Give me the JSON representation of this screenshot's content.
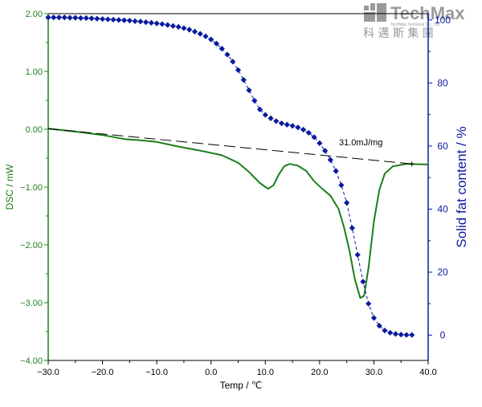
{
  "logo": {
    "brand": "TechMax",
    "sub_chinese": "科 邁 斯 集 團",
    "sub_english": "TechMax Technical Co., Ltd"
  },
  "colors": {
    "dsc": "#1a7f1a",
    "sfc": "#0a1aa0",
    "baseline": "#000000",
    "logo": "#9a9a9a"
  },
  "chart_data": {
    "type": "line",
    "x": {
      "label": "Temp / ℃",
      "range": [
        -30,
        40
      ],
      "ticks": [
        -30,
        -20,
        -10,
        0,
        10,
        20,
        30,
        40
      ],
      "tick_labels": [
        "−30.0",
        "−20.0",
        "−10.0",
        "0.0",
        "10.0",
        "20.0",
        "30.0",
        "40.0"
      ]
    },
    "y_left": {
      "label": "DSC / mW",
      "range": [
        -4,
        2
      ],
      "ticks": [
        -4,
        -3,
        -2,
        -1,
        0,
        1,
        2
      ],
      "tick_labels": [
        "−4.00",
        "−3.00",
        "−2.00",
        "−1.00",
        "0.00",
        "1.00",
        "2.00"
      ]
    },
    "y_right": {
      "label": "Solid fat content / %",
      "range": [
        -8,
        102
      ],
      "ticks": [
        0,
        20,
        40,
        60,
        80,
        100
      ],
      "tick_labels": [
        "0",
        "20",
        "40",
        "60",
        "80",
        "100"
      ]
    },
    "grid": false,
    "annotation": "31.0mJ/mg",
    "series": [
      {
        "axis": "left",
        "style": "solid",
        "points": [
          [
            -30,
            0.01
          ],
          [
            -25,
            -0.04
          ],
          [
            -20,
            -0.1
          ],
          [
            -16,
            -0.17
          ],
          [
            -13,
            -0.19
          ],
          [
            -10,
            -0.22
          ],
          [
            -6,
            -0.3
          ],
          [
            -2,
            -0.37
          ],
          [
            2,
            -0.45
          ],
          [
            5,
            -0.58
          ],
          [
            7,
            -0.74
          ],
          [
            9,
            -0.93
          ],
          [
            10.5,
            -1.03
          ],
          [
            11.5,
            -0.97
          ],
          [
            12.5,
            -0.78
          ],
          [
            13.5,
            -0.64
          ],
          [
            14.5,
            -0.6
          ],
          [
            16,
            -0.63
          ],
          [
            17.5,
            -0.72
          ],
          [
            19,
            -0.9
          ],
          [
            20.5,
            -1.03
          ],
          [
            22,
            -1.15
          ],
          [
            23.5,
            -1.38
          ],
          [
            24.5,
            -1.7
          ],
          [
            25.5,
            -2.1
          ],
          [
            26.5,
            -2.6
          ],
          [
            27.5,
            -2.92
          ],
          [
            28.2,
            -2.88
          ],
          [
            29,
            -2.4
          ],
          [
            30,
            -1.6
          ],
          [
            31,
            -1.05
          ],
          [
            32,
            -0.77
          ],
          [
            33.5,
            -0.64
          ],
          [
            36,
            -0.6
          ],
          [
            40,
            -0.61
          ]
        ]
      },
      {
        "axis": "left",
        "style": "dashed",
        "points": [
          [
            -30,
            0.01
          ],
          [
            37,
            -0.6
          ]
        ]
      },
      {
        "axis": "right",
        "style": "dashed-diamond",
        "points": [
          [
            -30,
            100.8
          ],
          [
            -29,
            100.8
          ],
          [
            -28,
            100.8
          ],
          [
            -27,
            100.8
          ],
          [
            -26,
            100.7
          ],
          [
            -25,
            100.7
          ],
          [
            -24,
            100.6
          ],
          [
            -23,
            100.6
          ],
          [
            -22,
            100.5
          ],
          [
            -21,
            100.4
          ],
          [
            -20,
            100.3
          ],
          [
            -19,
            100.2
          ],
          [
            -18,
            100.1
          ],
          [
            -17,
            100.0
          ],
          [
            -16,
            99.9
          ],
          [
            -15,
            99.8
          ],
          [
            -14,
            99.6
          ],
          [
            -13,
            99.5
          ],
          [
            -12,
            99.3
          ],
          [
            -11,
            99.1
          ],
          [
            -10,
            98.9
          ],
          [
            -9,
            98.7
          ],
          [
            -8,
            98.4
          ],
          [
            -7,
            98.1
          ],
          [
            -6,
            97.8
          ],
          [
            -5,
            97.4
          ],
          [
            -4,
            96.9
          ],
          [
            -3,
            96.3
          ],
          [
            -2,
            95.6
          ],
          [
            -1,
            94.8
          ],
          [
            0,
            93.8
          ],
          [
            1,
            92.5
          ],
          [
            2,
            90.9
          ],
          [
            3,
            89.0
          ],
          [
            4,
            86.8
          ],
          [
            5,
            84.1
          ],
          [
            6,
            81.0
          ],
          [
            7,
            77.7
          ],
          [
            8,
            74.4
          ],
          [
            9,
            71.6
          ],
          [
            10,
            69.9
          ],
          [
            11,
            68.8
          ],
          [
            12,
            67.9
          ],
          [
            13,
            67.2
          ],
          [
            14,
            66.8
          ],
          [
            15,
            66.4
          ],
          [
            16,
            65.9
          ],
          [
            17,
            65.2
          ],
          [
            18,
            64.2
          ],
          [
            19,
            62.8
          ],
          [
            20,
            60.9
          ],
          [
            21,
            58.5
          ],
          [
            22,
            55.6
          ],
          [
            23,
            52.1
          ],
          [
            24,
            47.6
          ],
          [
            25,
            42.0
          ],
          [
            26,
            34.0
          ],
          [
            27,
            25.5
          ],
          [
            28,
            17.0
          ],
          [
            29,
            10.0
          ],
          [
            30,
            5.5
          ],
          [
            31,
            3.0
          ],
          [
            32,
            1.5
          ],
          [
            33,
            0.8
          ],
          [
            34,
            0.4
          ],
          [
            35,
            0.2
          ],
          [
            36,
            0.1
          ],
          [
            37,
            0.1
          ]
        ]
      }
    ]
  }
}
